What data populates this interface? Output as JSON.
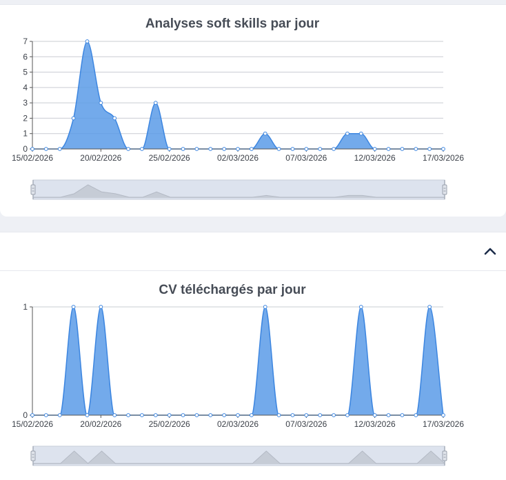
{
  "panel_soft": {
    "chart_data": {
      "type": "area",
      "title": "Analyses soft skills par jour",
      "x": [
        "15/02/2026",
        "16/02/2026",
        "17/02/2026",
        "18/02/2026",
        "19/02/2026",
        "20/02/2026",
        "21/02/2026",
        "22/02/2026",
        "23/02/2026",
        "24/02/2026",
        "25/02/2026",
        "26/02/2026",
        "27/02/2026",
        "28/02/2026",
        "01/03/2026",
        "02/03/2026",
        "03/03/2026",
        "04/03/2026",
        "05/03/2026",
        "06/03/2026",
        "07/03/2026",
        "08/03/2026",
        "09/03/2026",
        "10/03/2026",
        "11/03/2026",
        "12/03/2026",
        "13/03/2026",
        "14/03/2026",
        "15/03/2026",
        "16/03/2026",
        "17/03/2026"
      ],
      "xticks": [
        "15/02/2026",
        "20/02/2026",
        "25/02/2026",
        "02/03/2026",
        "07/03/2026",
        "12/03/2026",
        "17/03/2026"
      ],
      "series": [
        {
          "values": [
            0,
            0,
            0,
            2,
            7,
            3,
            2,
            0,
            0,
            3,
            0,
            0,
            0,
            0,
            0,
            0,
            0,
            1,
            0,
            0,
            0,
            0,
            0,
            1,
            1,
            0,
            0,
            0,
            0,
            0,
            0
          ]
        }
      ],
      "ylim": [
        0,
        7
      ],
      "yticks": [
        0,
        1,
        2,
        3,
        4,
        5,
        6,
        7
      ],
      "grid": true,
      "color": "#5b9be8"
    }
  },
  "panel_cv": {
    "chart_data": {
      "type": "area",
      "title": "CV téléchargés par jour",
      "x": [
        "15/02/2026",
        "16/02/2026",
        "17/02/2026",
        "18/02/2026",
        "19/02/2026",
        "20/02/2026",
        "21/02/2026",
        "22/02/2026",
        "23/02/2026",
        "24/02/2026",
        "25/02/2026",
        "26/02/2026",
        "27/02/2026",
        "28/02/2026",
        "01/03/2026",
        "02/03/2026",
        "03/03/2026",
        "04/03/2026",
        "05/03/2026",
        "06/03/2026",
        "07/03/2026",
        "08/03/2026",
        "09/03/2026",
        "10/03/2026",
        "11/03/2026",
        "12/03/2026",
        "13/03/2026",
        "14/03/2026",
        "15/03/2026",
        "16/03/2026",
        "17/03/2026"
      ],
      "xticks": [
        "15/02/2026",
        "20/02/2026",
        "25/02/2026",
        "02/03/2026",
        "07/03/2026",
        "12/03/2026",
        "17/03/2026"
      ],
      "series": [
        {
          "values": [
            0,
            0,
            0,
            1,
            0,
            1,
            0,
            0,
            0,
            0,
            0,
            0,
            0,
            0,
            0,
            0,
            0,
            1,
            0,
            0,
            0,
            0,
            0,
            0,
            1,
            0,
            0,
            0,
            0,
            1,
            0
          ]
        }
      ],
      "ylim": [
        0,
        1
      ],
      "yticks": [
        0,
        1
      ],
      "grid": true,
      "color": "#5b9be8"
    }
  },
  "icons": {
    "collapse": "chevron-up-icon",
    "zoom_handle": "drag-handle-icon"
  }
}
